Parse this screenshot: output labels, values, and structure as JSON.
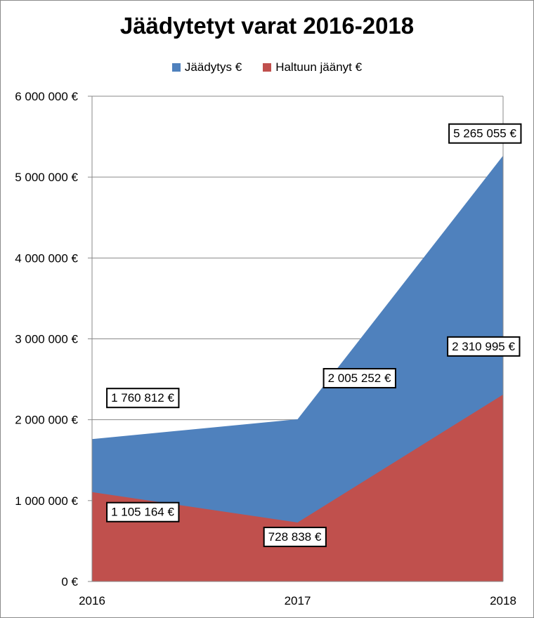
{
  "chart_data": {
    "type": "area",
    "title": "Jäädytetyt varat 2016-2018",
    "categories": [
      "2016",
      "2017",
      "2018"
    ],
    "series": [
      {
        "name": "Jäädytys €",
        "color": "#4F81BD",
        "values": [
          1760812,
          2005252,
          5265055
        ],
        "labels": [
          "1 760 812 €",
          "2 005 252 €",
          "5 265 055 €"
        ]
      },
      {
        "name": "Haltuun jäänyt €",
        "color": "#C0504D",
        "values": [
          1105164,
          728838,
          2310995
        ],
        "labels": [
          "1 105 164 €",
          "728 838 €",
          "2 310 995 €"
        ]
      }
    ],
    "yticks": [
      "0 €",
      "1 000 000 €",
      "2 000 000 €",
      "3 000 000 €",
      "4 000 000 €",
      "5 000 000 €",
      "6 000 000 €"
    ],
    "ylim": [
      0,
      6000000
    ],
    "grid": true,
    "legend_position": "top"
  }
}
